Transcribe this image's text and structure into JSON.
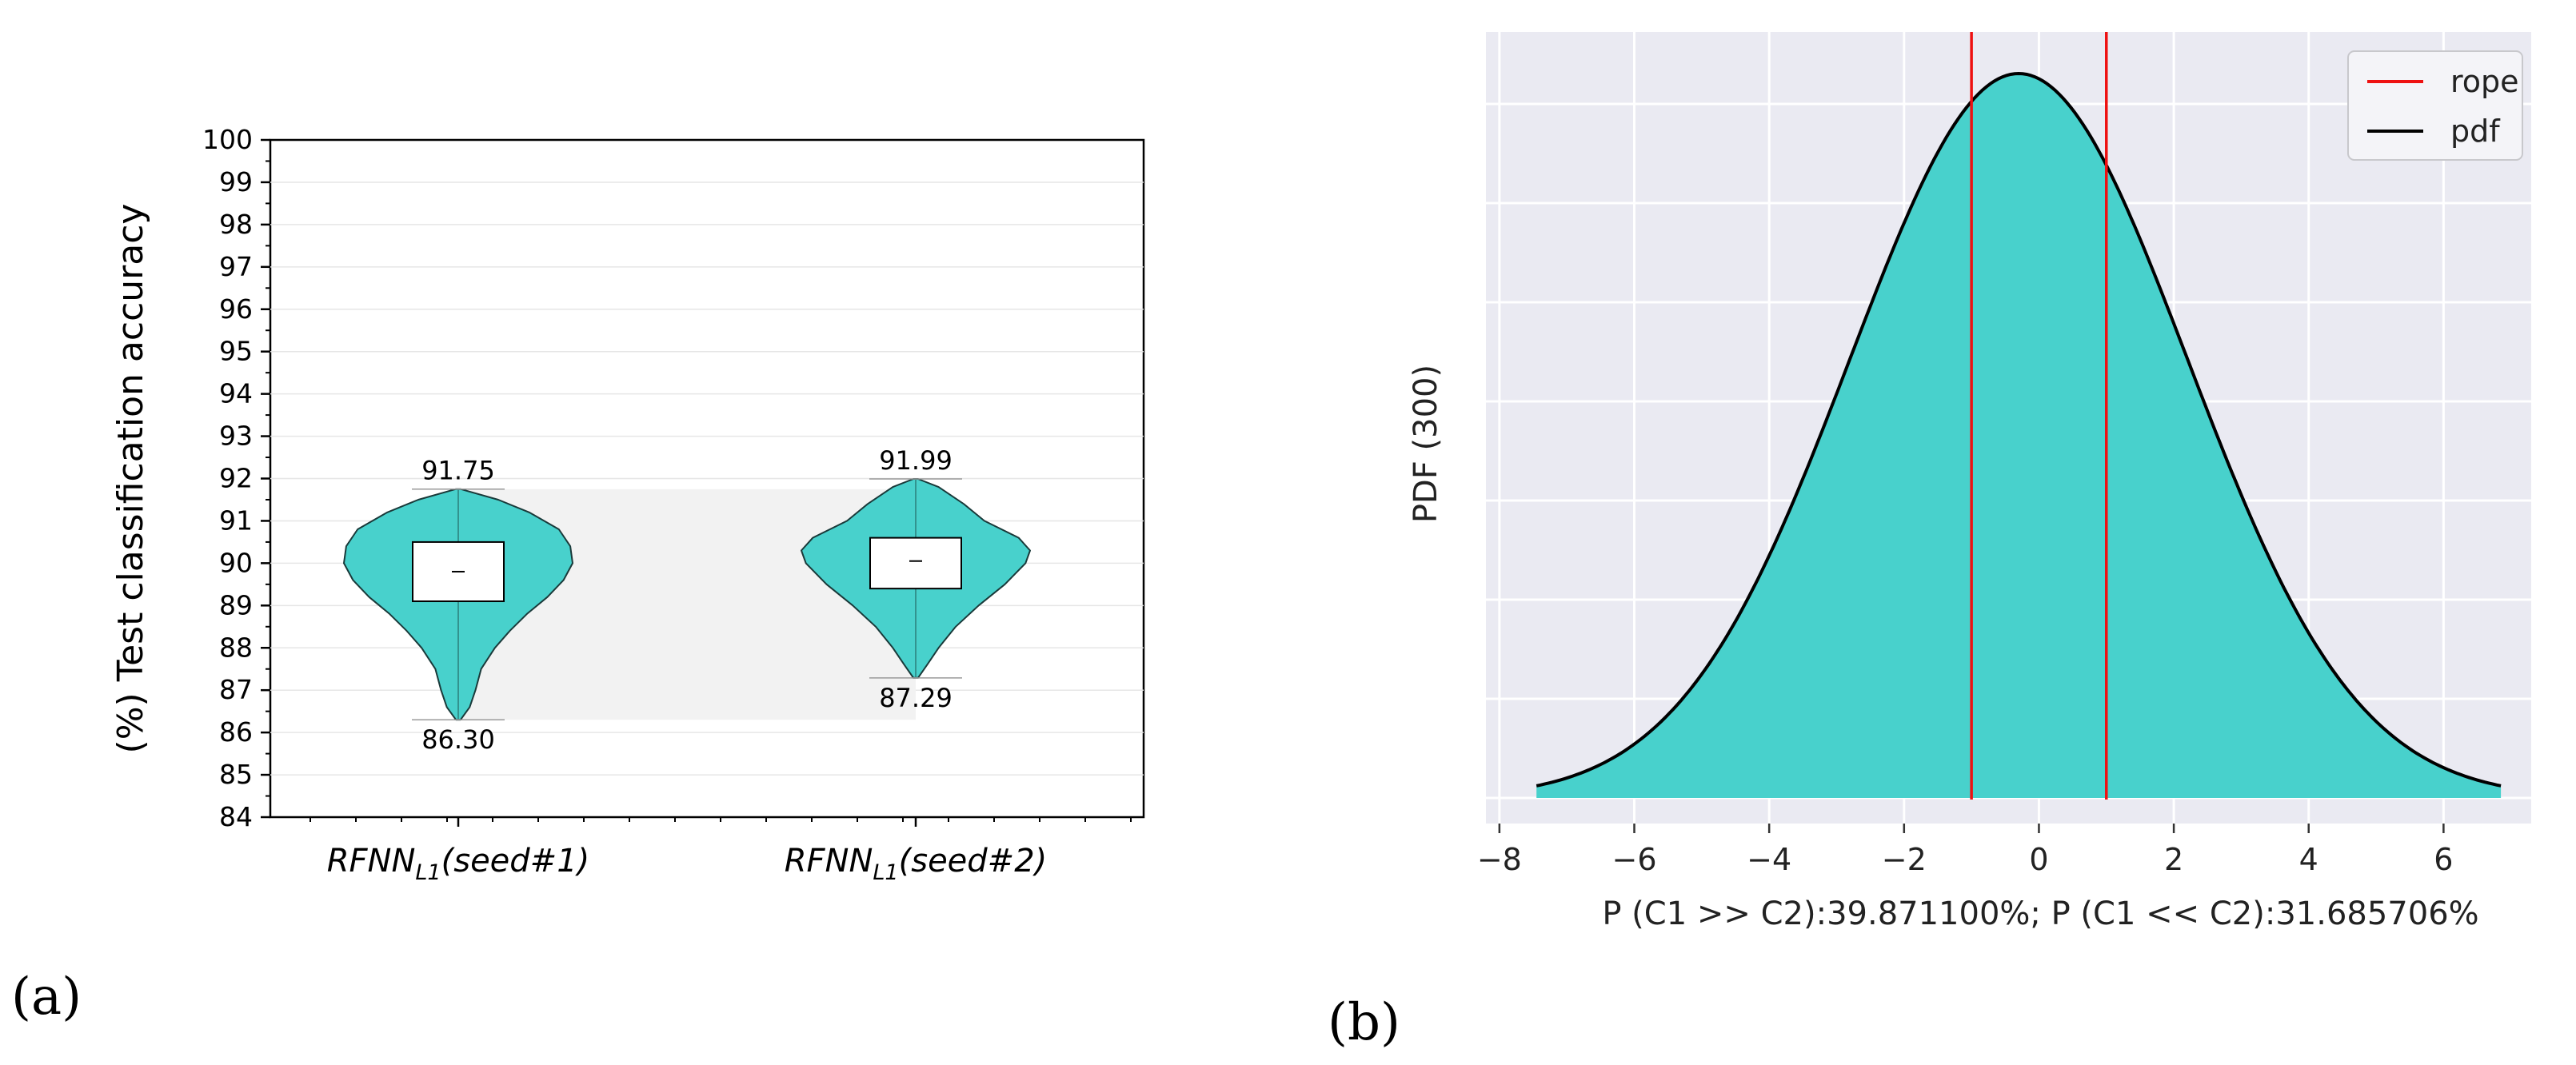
{
  "figure": {
    "panel_a_label": "(a)",
    "panel_b_label": "(b)"
  },
  "colors": {
    "violin_fill": "#48D1CC",
    "pdf_fill": "#48D1CC",
    "rope": "#EE1111",
    "pdf_line": "#000000",
    "plot_bg_b": "#EAEAF2"
  },
  "chart_data": [
    {
      "type": "violin",
      "ylabel": "(%) Test classification accuracy",
      "ylim": [
        84,
        100
      ],
      "yticks": [
        "84",
        "85",
        "86",
        "87",
        "88",
        "89",
        "90",
        "91",
        "92",
        "93",
        "94",
        "95",
        "96",
        "97",
        "98",
        "99",
        "100"
      ],
      "category_base": "RFNN",
      "category_sub": "L1",
      "categories": [
        "(seed#1)",
        "(seed#2)"
      ],
      "series": [
        {
          "name": "seed#1",
          "min": 86.3,
          "max": 91.75,
          "median": 89.8,
          "q1": 89.1,
          "q3": 90.5,
          "min_label": "86.30",
          "max_label": "91.75",
          "profile": [
            [
              86.3,
              0.02
            ],
            [
              86.6,
              0.1
            ],
            [
              87.0,
              0.15
            ],
            [
              87.5,
              0.2
            ],
            [
              88.0,
              0.32
            ],
            [
              88.4,
              0.45
            ],
            [
              88.8,
              0.6
            ],
            [
              89.2,
              0.78
            ],
            [
              89.6,
              0.92
            ],
            [
              90.0,
              1.0
            ],
            [
              90.4,
              0.98
            ],
            [
              90.8,
              0.88
            ],
            [
              91.2,
              0.62
            ],
            [
              91.5,
              0.35
            ],
            [
              91.75,
              0.02
            ]
          ]
        },
        {
          "name": "seed#2",
          "min": 87.29,
          "max": 91.99,
          "median": 90.05,
          "q1": 89.4,
          "q3": 90.6,
          "min_label": "87.29",
          "max_label": "91.99",
          "profile": [
            [
              87.29,
              0.02
            ],
            [
              87.6,
              0.1
            ],
            [
              88.0,
              0.2
            ],
            [
              88.5,
              0.35
            ],
            [
              89.0,
              0.55
            ],
            [
              89.5,
              0.78
            ],
            [
              90.0,
              0.96
            ],
            [
              90.3,
              1.0
            ],
            [
              90.6,
              0.9
            ],
            [
              91.0,
              0.6
            ],
            [
              91.4,
              0.42
            ],
            [
              91.8,
              0.2
            ],
            [
              91.99,
              0.02
            ]
          ]
        }
      ],
      "shaded_band": [
        86.3,
        91.75
      ]
    },
    {
      "type": "area",
      "ylabel": "PDF (300)",
      "xlabel": "P (C1 >> C2):39.871100%; P (C1 << C2):31.685706%",
      "xlim": [
        -8.2,
        7.3
      ],
      "xticks": [
        -8,
        -6,
        -4,
        -2,
        0,
        2,
        4,
        6
      ],
      "xtick_labels": [
        "−8",
        "−6",
        "−4",
        "−2",
        "0",
        "2",
        "4",
        "6"
      ],
      "ylim": [
        0,
        1.0
      ],
      "normal": {
        "mean": -0.3,
        "sd": 2.5,
        "x_start": -7.45,
        "x_end": 6.85
      },
      "rope": [
        -1,
        1
      ],
      "legend": [
        {
          "label": "rope",
          "color": "#EE1111"
        },
        {
          "label": "pdf",
          "color": "#000000"
        }
      ],
      "grid": true
    }
  ]
}
